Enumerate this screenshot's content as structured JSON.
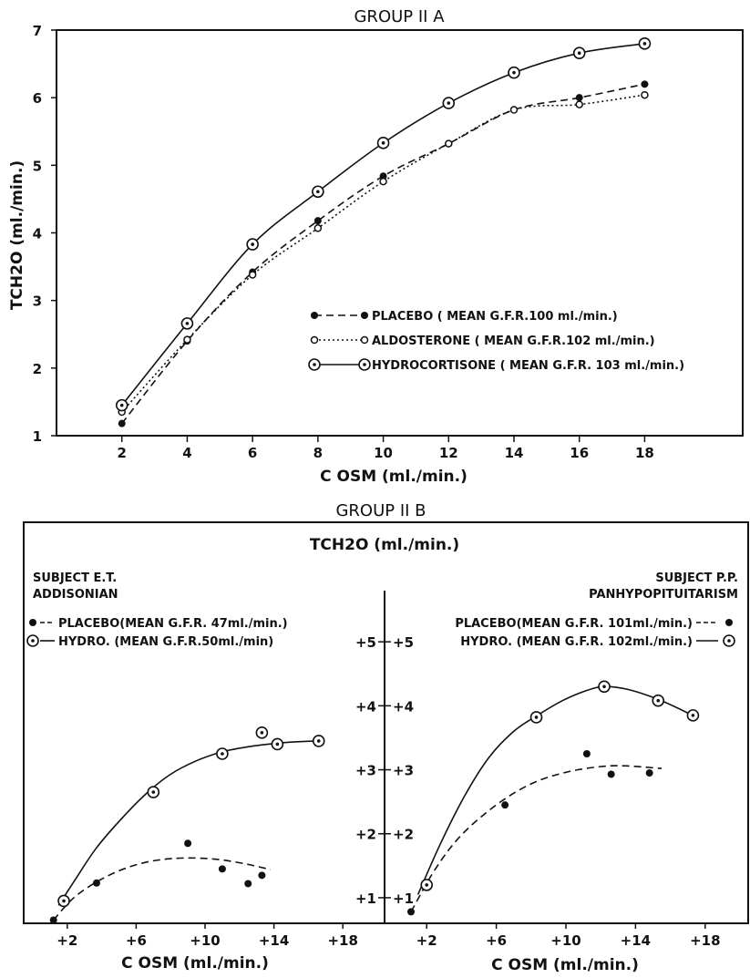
{
  "chart_data": [
    {
      "type": "line",
      "title": "GROUP II A",
      "xlabel": "C OSM (ml./min.)",
      "ylabel": "TCH2O (ml./min.)",
      "xlim": [
        0,
        21
      ],
      "ylim": [
        1,
        7
      ],
      "xticks": [
        "2",
        "4",
        "6",
        "8",
        "10",
        "12",
        "14",
        "16",
        "18"
      ],
      "yticks": [
        "1",
        "2",
        "3",
        "4",
        "5",
        "6",
        "7"
      ],
      "legend_position": "lower-right",
      "series": [
        {
          "name": "PLACEBO ( MEAN G.F.R.100 ml./min.)",
          "marker": "filled-dot",
          "line": "dashed",
          "x": [
            2,
            4,
            6,
            8,
            10,
            12,
            14,
            16,
            18
          ],
          "y": [
            1.18,
            2.4,
            3.42,
            4.18,
            4.84,
            5.32,
            5.82,
            6.0,
            6.2
          ]
        },
        {
          "name": "ALDOSTERONE ( MEAN G.F.R.102 ml./min.)",
          "marker": "open-circle",
          "line": "dotted",
          "x": [
            2,
            4,
            6,
            8,
            10,
            12,
            14,
            16,
            18
          ],
          "y": [
            1.35,
            2.42,
            3.38,
            4.07,
            4.76,
            5.32,
            5.82,
            5.9,
            6.04
          ]
        },
        {
          "name": "HYDROCORTISONE ( MEAN G.F.R. 103 ml./min.)",
          "marker": "double-circle",
          "line": "solid",
          "x": [
            2,
            4,
            6,
            8,
            10,
            12,
            14,
            16,
            18
          ],
          "y": [
            1.45,
            2.66,
            3.83,
            4.61,
            5.33,
            5.92,
            6.37,
            6.66,
            6.8
          ]
        }
      ]
    },
    {
      "type": "line",
      "title": "GROUP II B",
      "ylabel": "TCH2O (ml./min.)",
      "ylim": [
        0.6,
        5.8
      ],
      "yticks": [
        "+1",
        "+2",
        "+3",
        "+4",
        "+5"
      ],
      "panels": [
        {
          "subject": "SUBJECT E.T.",
          "condition": "ADDISONIAN",
          "xlabel": "C OSM (ml./min.)",
          "xlim": [
            0,
            20
          ],
          "xticks": [
            "+2",
            "+6",
            "+10",
            "+14",
            "+18"
          ],
          "series": [
            {
              "name": "PLACEBO(MEAN G.F.R. 47ml./min.)",
              "marker": "filled-dot",
              "line": "dashed",
              "x": [
                1.2,
                3.7,
                9.0,
                11.0,
                12.5,
                13.3
              ],
              "y": [
                0.65,
                1.23,
                1.85,
                1.45,
                1.22,
                1.35
              ],
              "curve_x": [
                1.2,
                2.3,
                3.6,
                5.0,
                6.5,
                8.0,
                9.5,
                11.0,
                12.5,
                13.8
              ],
              "curve_y": [
                0.65,
                0.98,
                1.23,
                1.42,
                1.55,
                1.61,
                1.62,
                1.59,
                1.52,
                1.44
              ]
            },
            {
              "name": "HYDRO. (MEAN G.F.R.50ml./min)",
              "marker": "double-circle",
              "line": "solid",
              "x": [
                1.8,
                7.0,
                11.0,
                13.3,
                14.2,
                16.6
              ],
              "y": [
                0.95,
                2.65,
                3.25,
                3.58,
                3.4,
                3.45
              ],
              "curve_x": [
                1.5,
                2.5,
                3.7,
                5.1,
                6.6,
                8.0,
                9.5,
                11.0,
                12.5,
                14.0,
                15.5,
                16.6
              ],
              "curve_y": [
                0.88,
                1.3,
                1.78,
                2.22,
                2.63,
                2.93,
                3.14,
                3.28,
                3.36,
                3.41,
                3.44,
                3.45
              ]
            }
          ]
        },
        {
          "subject": "SUBJECT P.P.",
          "condition": "PANHYPOPITUITARISM",
          "xlabel": "C OSM (ml./min.)",
          "xlim": [
            0,
            20
          ],
          "xticks": [
            "+2",
            "+6",
            "+10",
            "+14",
            "+18"
          ],
          "series": [
            {
              "name": "PLACEBO(MEAN G.F.R. 101ml./min.)",
              "marker": "filled-dot",
              "line": "dashed",
              "x": [
                1.1,
                6.5,
                11.2,
                12.6,
                14.8
              ],
              "y": [
                0.78,
                2.45,
                3.25,
                2.93,
                2.95
              ],
              "curve_x": [
                1.1,
                2.5,
                4.0,
                6.0,
                8.0,
                10.0,
                12.0,
                13.5,
                15.5
              ],
              "curve_y": [
                0.78,
                1.45,
                1.98,
                2.45,
                2.78,
                2.96,
                3.05,
                3.06,
                3.02
              ]
            },
            {
              "name": "HYDRO. (MEAN G.F.R. 102ml./min.)",
              "marker": "double-circle",
              "line": "solid",
              "x": [
                2.0,
                8.3,
                12.2,
                15.3,
                17.3
              ],
              "y": [
                1.2,
                3.82,
                4.3,
                4.08,
                3.85
              ],
              "curve_x": [
                1.5,
                2.8,
                4.2,
                5.6,
                7.0,
                8.3,
                9.8,
                11.2,
                12.2,
                13.5,
                15.3,
                17.3
              ],
              "curve_y": [
                1.05,
                1.85,
                2.6,
                3.2,
                3.6,
                3.84,
                4.08,
                4.24,
                4.3,
                4.26,
                4.1,
                3.85
              ]
            }
          ]
        }
      ]
    }
  ]
}
